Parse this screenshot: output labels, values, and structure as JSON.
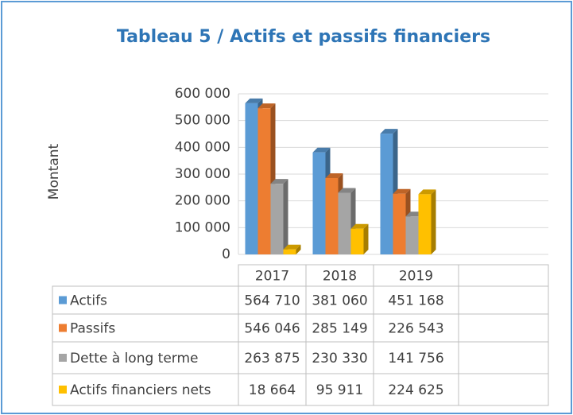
{
  "chart_data": {
    "type": "bar",
    "title": "Tableau 5 / Actifs et passifs financiers",
    "y_label": "Montant",
    "categories": [
      "2017",
      "2018",
      "2019"
    ],
    "series": [
      {
        "name": "Actifs",
        "color": "#5b9bd5",
        "values": [
          564710,
          381060,
          451168
        ],
        "value_labels": [
          "564 710",
          "381 060",
          "451 168"
        ]
      },
      {
        "name": "Passifs",
        "color": "#ed7d31",
        "values": [
          546046,
          285149,
          226543
        ],
        "value_labels": [
          "546 046",
          "285 149",
          "226 543"
        ]
      },
      {
        "name": "Dette à long terme",
        "color": "#a5a5a5",
        "values": [
          263875,
          230330,
          141756
        ],
        "value_labels": [
          "263 875",
          "230 330",
          "141 756"
        ]
      },
      {
        "name": "Actifs financiers nets",
        "color": "#ffc000",
        "values": [
          18664,
          95911,
          224625
        ],
        "value_labels": [
          "18 664",
          "95 911",
          "224 625"
        ]
      }
    ],
    "ylim": [
      0,
      600000
    ],
    "yticks": [
      0,
      {
        "value": 100000,
        "label": "100 000"
      },
      {
        "value": 200000,
        "label": "200 000"
      },
      {
        "value": 300000,
        "label": "300 000"
      },
      {
        "value": 400000,
        "label": "400 000"
      },
      {
        "value": 500000,
        "label": "500 000"
      },
      {
        "value": 600000,
        "label": "600 000"
      }
    ],
    "grid": true
  }
}
